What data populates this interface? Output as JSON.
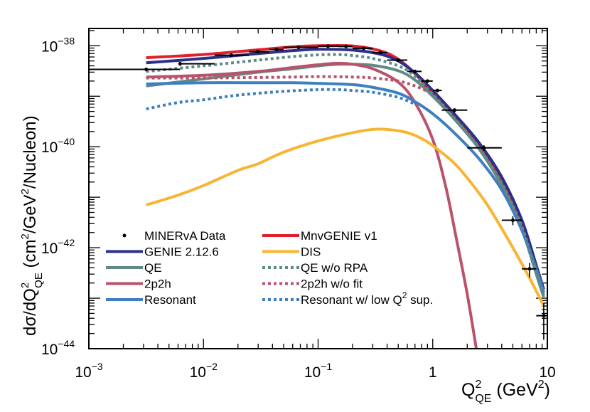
{
  "chart_data": {
    "type": "line",
    "x_scale": "log",
    "y_scale": "log",
    "xlim": [
      0.001,
      10
    ],
    "ylim": [
      1e-44,
      2.2e-38
    ],
    "x_ticks": [
      {
        "value": 0.001,
        "base": "10",
        "exp": "−3"
      },
      {
        "value": 0.01,
        "base": "10",
        "exp": "−2"
      },
      {
        "value": 0.1,
        "base": "10",
        "exp": "−1"
      },
      {
        "value": 1,
        "base": "1",
        "exp": ""
      },
      {
        "value": 10,
        "base": "10",
        "exp": ""
      }
    ],
    "y_ticks": [
      {
        "value": 1e-44,
        "base": "10",
        "exp": "−44"
      },
      {
        "value": 1e-42,
        "base": "10",
        "exp": "−42"
      },
      {
        "value": 1e-40,
        "base": "10",
        "exp": "−40"
      },
      {
        "value": 1e-38,
        "base": "10",
        "exp": "−38"
      }
    ],
    "xlabel": {
      "main": "Q",
      "sup": "2",
      "sub": "QE",
      "unit_open": " (GeV",
      "unit_sup": "2",
      "unit_close": ")"
    },
    "ylabel": {
      "pre": "dσ/dQ",
      "sup1": "2",
      "sub1": "QE",
      "mid": "  (cm",
      "sup2": "2",
      "mid2": "/GeV",
      "sup3": "2",
      "post": "/Nucleon)"
    },
    "series": [
      {
        "name": "MnvGENIE v1",
        "color": "#e0202c",
        "dash": "solid",
        "points": [
          [
            0.003162,
            5.8e-39
          ],
          [
            0.01,
            6.7e-39
          ],
          [
            0.03,
            8.3e-39
          ],
          [
            0.06,
            9.5e-39
          ],
          [
            0.1,
            1e-38
          ],
          [
            0.2,
            9.9e-39
          ],
          [
            0.35,
            7.9e-39
          ],
          [
            0.5,
            5.4e-39
          ],
          [
            0.7,
            2.8e-39
          ],
          [
            1.0,
            1.1e-39
          ],
          [
            1.5,
            4e-40
          ],
          [
            2.5,
            1.05e-40
          ],
          [
            4,
            2.1e-41
          ],
          [
            6,
            3e-42
          ],
          [
            8,
            3.8e-43
          ],
          [
            9.3,
            1.3e-43
          ]
        ]
      },
      {
        "name": "GENIE 2.12.6",
        "color": "#2b2f8a",
        "dash": "solid",
        "points": [
          [
            0.003162,
            4.6e-39
          ],
          [
            0.01,
            5.6e-39
          ],
          [
            0.03,
            7e-39
          ],
          [
            0.06,
            8e-39
          ],
          [
            0.1,
            8.5e-39
          ],
          [
            0.2,
            8.2e-39
          ],
          [
            0.35,
            6.8e-39
          ],
          [
            0.5,
            5e-39
          ],
          [
            0.7,
            2.9e-39
          ],
          [
            1.0,
            1.3e-39
          ],
          [
            1.5,
            4.8e-40
          ],
          [
            2.5,
            1.25e-40
          ],
          [
            4,
            2.5e-41
          ],
          [
            6,
            3.5e-42
          ],
          [
            8,
            4.5e-43
          ],
          [
            9.3,
            1.5e-43
          ]
        ]
      },
      {
        "name": "QE",
        "color": "#5f8b86",
        "dash": "solid",
        "points": [
          [
            0.003162,
            1.6e-39
          ],
          [
            0.01,
            2.2e-39
          ],
          [
            0.03,
            3e-39
          ],
          [
            0.06,
            3.5e-39
          ],
          [
            0.1,
            4e-39
          ],
          [
            0.15,
            4.3e-39
          ],
          [
            0.2,
            4.3e-39
          ],
          [
            0.3,
            4.1e-39
          ],
          [
            0.5,
            3.2e-39
          ],
          [
            0.7,
            2.1e-39
          ],
          [
            1.0,
            1e-39
          ],
          [
            1.5,
            3.8e-40
          ],
          [
            2.5,
            9.5e-41
          ],
          [
            4,
            1.7e-41
          ],
          [
            6,
            2.3e-42
          ],
          [
            8,
            3e-43
          ],
          [
            9.3,
            1.05e-43
          ]
        ]
      },
      {
        "name": "2p2h",
        "color": "#b8536b",
        "dash": "solid",
        "points": [
          [
            0.003162,
            2.4e-39
          ],
          [
            0.01,
            2.6e-39
          ],
          [
            0.03,
            3.1e-39
          ],
          [
            0.06,
            3.7e-39
          ],
          [
            0.1,
            4.2e-39
          ],
          [
            0.15,
            4.5e-39
          ],
          [
            0.2,
            4.3e-39
          ],
          [
            0.3,
            3.5e-39
          ],
          [
            0.5,
            1.9e-39
          ],
          [
            0.7,
            7.5e-40
          ],
          [
            1.0,
            1.4e-40
          ],
          [
            1.3,
            1.6e-41
          ],
          [
            1.6,
            1.6e-42
          ],
          [
            2.0,
            1.2e-43
          ],
          [
            2.4,
            1e-44
          ]
        ]
      },
      {
        "name": "Resonant",
        "color": "#3f7fc0",
        "dash": "solid",
        "points": [
          [
            0.003162,
            1.75e-39
          ],
          [
            0.01,
            1.85e-39
          ],
          [
            0.03,
            1.85e-39
          ],
          [
            0.06,
            1.85e-39
          ],
          [
            0.1,
            1.8e-39
          ],
          [
            0.2,
            1.7e-39
          ],
          [
            0.3,
            1.5e-39
          ],
          [
            0.5,
            1.15e-39
          ],
          [
            0.7,
            7.8e-40
          ],
          [
            1.0,
            4.5e-40
          ],
          [
            1.5,
            2e-40
          ],
          [
            2.5,
            6e-41
          ],
          [
            4,
            1.4e-41
          ],
          [
            6,
            2.2e-42
          ],
          [
            8,
            3.8e-43
          ],
          [
            9.3,
            1.3e-43
          ]
        ]
      },
      {
        "name": "DIS",
        "color": "#f7b533",
        "dash": "solid",
        "points": [
          [
            0.003162,
            7e-42
          ],
          [
            0.006,
            1.1e-41
          ],
          [
            0.01,
            1.7e-41
          ],
          [
            0.02,
            3.4e-41
          ],
          [
            0.03,
            4.6e-41
          ],
          [
            0.05,
            7.8e-41
          ],
          [
            0.1,
            1.3e-40
          ],
          [
            0.2,
            1.9e-40
          ],
          [
            0.3,
            2.2e-40
          ],
          [
            0.4,
            2.2e-40
          ],
          [
            0.6,
            1.9e-40
          ],
          [
            0.8,
            1.45e-40
          ],
          [
            1.0,
            1.05e-40
          ],
          [
            1.5,
            5e-41
          ],
          [
            2,
            2.4e-41
          ],
          [
            3,
            7e-42
          ],
          [
            5,
            1e-42
          ],
          [
            7,
            2.5e-43
          ],
          [
            9.3,
            7e-44
          ]
        ]
      },
      {
        "name": "QE w/o RPA",
        "color": "#5f8b86",
        "dash": "dot",
        "points": [
          [
            0.003162,
            3.1e-39
          ],
          [
            0.01,
            4e-39
          ],
          [
            0.03,
            5.2e-39
          ],
          [
            0.06,
            6.1e-39
          ],
          [
            0.1,
            6.6e-39
          ],
          [
            0.15,
            6.7e-39
          ],
          [
            0.2,
            6.4e-39
          ],
          [
            0.3,
            5.6e-39
          ],
          [
            0.5,
            4e-39
          ],
          [
            0.7,
            2.5e-39
          ],
          [
            1.0,
            1.1e-39
          ],
          [
            1.5,
            4e-40
          ],
          [
            2.5,
            1e-40
          ],
          [
            4,
            1.9e-41
          ],
          [
            6,
            2.6e-42
          ],
          [
            8,
            3.3e-43
          ],
          [
            9.3,
            1.15e-43
          ]
        ]
      },
      {
        "name": "2p2h w/o fit",
        "color": "#b8536b",
        "dash": "dot",
        "points": [
          [
            0.003162,
            2.3e-39
          ],
          [
            0.01,
            2.3e-39
          ],
          [
            0.03,
            2.35e-39
          ],
          [
            0.06,
            2.4e-39
          ],
          [
            0.1,
            2.45e-39
          ],
          [
            0.2,
            2.4e-39
          ],
          [
            0.3,
            2.3e-39
          ],
          [
            0.5,
            2e-39
          ],
          [
            0.7,
            1.6e-39
          ],
          [
            0.9,
            1.25e-39
          ]
        ]
      },
      {
        "name": "Resonant w/ low Q² sup.",
        "color": "#3f7fc0",
        "dash": "dot",
        "points": [
          [
            0.003162,
            5.6e-40
          ],
          [
            0.006,
            7.5e-40
          ],
          [
            0.01,
            8.5e-40
          ],
          [
            0.02,
            1.05e-39
          ],
          [
            0.05,
            1.25e-39
          ],
          [
            0.1,
            1.35e-39
          ],
          [
            0.15,
            1.35e-39
          ],
          [
            0.2,
            1.3e-39
          ],
          [
            0.3,
            1.2e-39
          ],
          [
            0.5,
            9.5e-40
          ],
          [
            0.7,
            7e-40
          ]
        ]
      }
    ],
    "data_points": [
      {
        "x": 0.003162,
        "xlo": 0.001,
        "xhi": 0.00625,
        "y": 3.4e-39,
        "ylo": 3.1e-39,
        "yhi": 3.7e-39
      },
      {
        "x": 0.00625,
        "xlo": 0.00625,
        "xhi": 0.0125,
        "y": 4.4e-39,
        "ylo": 4e-39,
        "yhi": 4.8e-39
      },
      {
        "x": 0.0175,
        "xlo": 0.0125,
        "xhi": 0.025,
        "y": 6.5e-39,
        "ylo": 6e-39,
        "yhi": 7e-39
      },
      {
        "x": 0.0298,
        "xlo": 0.025,
        "xhi": 0.0375,
        "y": 7.6e-39,
        "ylo": 7.1e-39,
        "yhi": 8.1e-39
      },
      {
        "x": 0.0435,
        "xlo": 0.0375,
        "xhi": 0.05,
        "y": 8.4e-39,
        "ylo": 7.9e-39,
        "yhi": 8.9e-39
      },
      {
        "x": 0.0675,
        "xlo": 0.05,
        "xhi": 0.1,
        "y": 9.3e-39,
        "ylo": 8.8e-39,
        "yhi": 9.8e-39
      },
      {
        "x": 0.122,
        "xlo": 0.1,
        "xhi": 0.15,
        "y": 9.8e-39,
        "ylo": 9.3e-39,
        "yhi": 1.03e-38
      },
      {
        "x": 0.175,
        "xlo": 0.15,
        "xhi": 0.2,
        "y": 9.7e-39,
        "ylo": 9.2e-39,
        "yhi": 1.02e-38
      },
      {
        "x": 0.25,
        "xlo": 0.2,
        "xhi": 0.3,
        "y": 8.9e-39,
        "ylo": 8.4e-39,
        "yhi": 9.4e-39
      },
      {
        "x": 0.35,
        "xlo": 0.3,
        "xhi": 0.4,
        "y": 7.3e-39,
        "ylo": 6.9e-39,
        "yhi": 7.7e-39
      },
      {
        "x": 0.5,
        "xlo": 0.4,
        "xhi": 0.6,
        "y": 5.2e-39,
        "ylo": 4.9e-39,
        "yhi": 5.5e-39
      },
      {
        "x": 0.7,
        "xlo": 0.6,
        "xhi": 0.8,
        "y": 3.1e-39,
        "ylo": 2.9e-39,
        "yhi": 3.3e-39
      },
      {
        "x": 0.9,
        "xlo": 0.8,
        "xhi": 1.0,
        "y": 2e-39,
        "ylo": 1.85e-39,
        "yhi": 2.15e-39
      },
      {
        "x": 1.1,
        "xlo": 1.0,
        "xhi": 1.2,
        "y": 1.3e-39,
        "ylo": 1.2e-39,
        "yhi": 1.4e-39
      },
      {
        "x": 1.55,
        "xlo": 1.2,
        "xhi": 2.0,
        "y": 5.3e-40,
        "ylo": 4.8e-40,
        "yhi": 5.8e-40
      },
      {
        "x": 2.8,
        "xlo": 2.0,
        "xhi": 4.0,
        "y": 9.5e-41,
        "ylo": 8.3e-41,
        "yhi": 1.07e-40
      },
      {
        "x": 5.0,
        "xlo": 4.0,
        "xhi": 6.0,
        "y": 3.5e-42,
        "ylo": 2.8e-42,
        "yhi": 4.2e-42
      },
      {
        "x": 7.0,
        "xlo": 6.0,
        "xhi": 8.0,
        "y": 3.8e-43,
        "ylo": 2.6e-43,
        "yhi": 5e-43
      },
      {
        "x": 9.3,
        "xlo": 8.0,
        "xhi": 10.0,
        "y": 4.5e-44,
        "ylo": 1.5e-44,
        "yhi": 8e-44
      }
    ],
    "legend": {
      "placement": "bottom-left",
      "entries": [
        {
          "label": "MINERvA Data",
          "type": "marker",
          "color": "#000000"
        },
        {
          "label": "MnvGENIE v1",
          "type": "line",
          "color": "#e0202c",
          "dash": "solid"
        },
        {
          "label": "GENIE 2.12.6",
          "type": "line",
          "color": "#2b2f8a",
          "dash": "solid"
        },
        {
          "label": "DIS",
          "type": "line",
          "color": "#f7b533",
          "dash": "solid"
        },
        {
          "label": "QE",
          "type": "line",
          "color": "#5f8b86",
          "dash": "solid"
        },
        {
          "label": "QE w/o RPA",
          "type": "line",
          "color": "#5f8b86",
          "dash": "dot"
        },
        {
          "label": "2p2h",
          "type": "line",
          "color": "#b8536b",
          "dash": "solid"
        },
        {
          "label": "2p2h w/o fit",
          "type": "line",
          "color": "#b8536b",
          "dash": "dot"
        },
        {
          "label": "Resonant",
          "type": "line",
          "color": "#3f7fc0",
          "dash": "solid"
        },
        {
          "label": "Resonant w/ low Q",
          "label_sup": "2",
          "label_post": " sup.",
          "type": "line",
          "color": "#3f7fc0",
          "dash": "dot"
        }
      ]
    }
  }
}
